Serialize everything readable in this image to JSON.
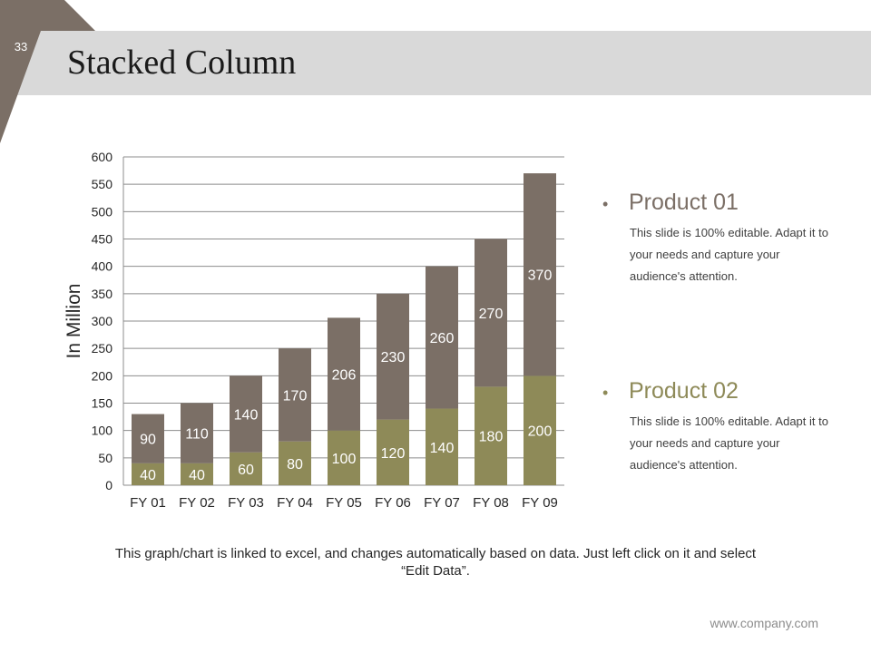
{
  "slide": {
    "number": "33",
    "title": "Stacked Column",
    "note": "This graph/chart is linked to excel, and changes automatically based on data. Just left click on it and select “Edit Data”.",
    "footer": "www.company.com",
    "colors": {
      "corner": "#7b6f66",
      "band": "#d9d9d9"
    }
  },
  "legend": [
    {
      "bullet": "•",
      "name": "Product 01",
      "color": "#7b6f66",
      "desc": "This slide is 100% editable. Adapt it to your needs and capture your audience's attention."
    },
    {
      "bullet": "•",
      "name": "Product 02",
      "color": "#8e8a58",
      "desc": "This slide is 100% editable. Adapt it to your needs and capture your audience's attention."
    }
  ],
  "chart_data": {
    "type": "bar",
    "stacked": true,
    "categories": [
      "FY 01",
      "FY 02",
      "FY 03",
      "FY 04",
      "FY 05",
      "FY 06",
      "FY 07",
      "FY 08",
      "FY 09"
    ],
    "series": [
      {
        "name": "Product 02",
        "color": "#8e8a58",
        "values": [
          40,
          40,
          60,
          80,
          100,
          120,
          140,
          180,
          200
        ]
      },
      {
        "name": "Product 01",
        "color": "#7b6f66",
        "values": [
          90,
          110,
          140,
          170,
          206,
          230,
          260,
          270,
          370
        ]
      }
    ],
    "ylabel": "In Million",
    "ylim": [
      0,
      600
    ],
    "yticks": [
      0,
      50,
      100,
      150,
      200,
      250,
      300,
      350,
      400,
      450,
      500,
      550,
      600
    ],
    "grid": true,
    "legend_position": "right"
  }
}
